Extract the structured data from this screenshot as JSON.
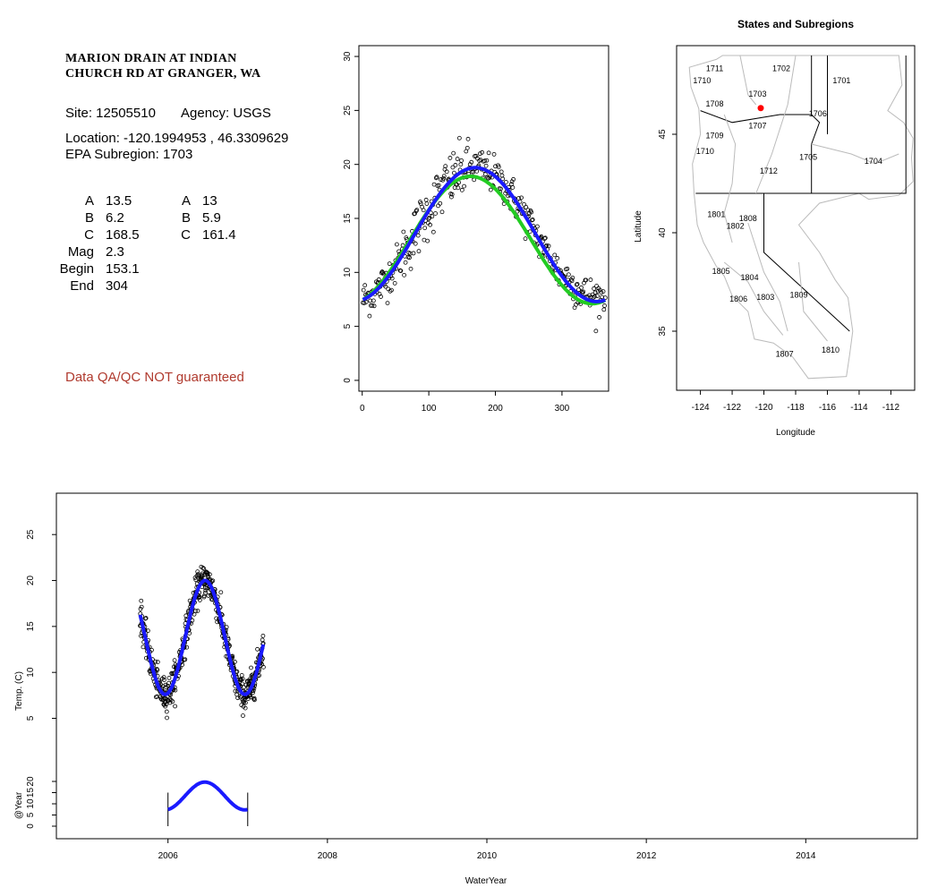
{
  "info": {
    "title_line1": "MARION DRAIN AT INDIAN",
    "title_line2": "CHURCH RD AT GRANGER, WA",
    "site": "Site: 12505510",
    "agency": "Agency: USGS",
    "location": "Location: -120.1994953 , 46.3309629",
    "subregion": "EPA Subregion: 1703",
    "params": [
      {
        "label": "A",
        "value": "13.5"
      },
      {
        "label": "B",
        "value": "6.2"
      },
      {
        "label": "C",
        "value": "168.5"
      },
      {
        "label": "Mag",
        "value": "2.3"
      },
      {
        "label": "Begin",
        "value": "153.1"
      },
      {
        "label": "End",
        "value": "304"
      }
    ],
    "params2": [
      {
        "label": "A",
        "value": "13"
      },
      {
        "label": "B",
        "value": "5.9"
      },
      {
        "label": "C",
        "value": "161.4"
      }
    ],
    "qa_note": "Data QA/QC NOT guaranteed"
  },
  "colors": {
    "points": "#000000",
    "fit_blue": "#1a1aff",
    "fit_green": "#22cc22",
    "site_marker": "#ff0000",
    "qa_text": "#b03a2e",
    "region_lines": "#bbbbbb"
  },
  "chart_data": [
    {
      "type": "scatter",
      "title": "",
      "xlabel": "",
      "ylabel": "",
      "xlim": [
        -5,
        370
      ],
      "ylim": [
        -1,
        31
      ],
      "xticks": [
        0,
        100,
        200,
        300
      ],
      "yticks": [
        0,
        5,
        10,
        15,
        20,
        25,
        30
      ],
      "observations_description": "daily water temperature (C) vs day of water year",
      "fit_blue": {
        "A": 13.5,
        "B": 6.2,
        "C": 168.5,
        "Mag": 2.3,
        "Begin": 153.1,
        "End": 304
      },
      "fit_green": {
        "A": 13,
        "B": 5.9,
        "C": 161.4
      },
      "point_count_approx": 365
    },
    {
      "type": "map",
      "title": "States and Subregions",
      "xlabel": "Longitude",
      "ylabel": "Latitude",
      "xlim": [
        -125.5,
        -110.5
      ],
      "ylim": [
        32,
        49.5
      ],
      "xticks": [
        -124,
        -122,
        -120,
        -118,
        -116,
        -114,
        -112
      ],
      "yticks": [
        35,
        40,
        45
      ],
      "site": {
        "lon": -120.1994953,
        "lat": 46.3309629
      },
      "region_labels": [
        {
          "name": "1711",
          "lon": -123.1,
          "lat": 48.2
        },
        {
          "name": "1710",
          "lon": -123.9,
          "lat": 47.6
        },
        {
          "name": "1702",
          "lon": -118.9,
          "lat": 48.2
        },
        {
          "name": "1701",
          "lon": -115.1,
          "lat": 47.6
        },
        {
          "name": "1703",
          "lon": -120.4,
          "lat": 46.9
        },
        {
          "name": "1708",
          "lon": -123.1,
          "lat": 46.4
        },
        {
          "name": "1706",
          "lon": -116.6,
          "lat": 45.9
        },
        {
          "name": "1707",
          "lon": -120.4,
          "lat": 45.3
        },
        {
          "name": "1709",
          "lon": -123.1,
          "lat": 44.8
        },
        {
          "name": "1710",
          "lon": -123.7,
          "lat": 44.0
        },
        {
          "name": "1705",
          "lon": -117.2,
          "lat": 43.7
        },
        {
          "name": "1704",
          "lon": -113.1,
          "lat": 43.5
        },
        {
          "name": "1712",
          "lon": -119.7,
          "lat": 43.0
        },
        {
          "name": "1801",
          "lon": -123.0,
          "lat": 40.8
        },
        {
          "name": "1808",
          "lon": -121.0,
          "lat": 40.6
        },
        {
          "name": "1802",
          "lon": -121.8,
          "lat": 40.2
        },
        {
          "name": "1805",
          "lon": -122.7,
          "lat": 37.9
        },
        {
          "name": "1804",
          "lon": -120.9,
          "lat": 37.6
        },
        {
          "name": "1806",
          "lon": -121.6,
          "lat": 36.5
        },
        {
          "name": "1803",
          "lon": -119.9,
          "lat": 36.6
        },
        {
          "name": "1809",
          "lon": -117.8,
          "lat": 36.7
        },
        {
          "name": "1807",
          "lon": -118.7,
          "lat": 33.7
        },
        {
          "name": "1810",
          "lon": -115.8,
          "lat": 33.9
        }
      ]
    },
    {
      "type": "scatter",
      "title": "",
      "xlabel": "WaterYear",
      "ylabel": "Temp. (C)",
      "xlim": [
        2004.6,
        2015.4
      ],
      "ylim": [
        -8.1,
        29.5
      ],
      "xticks": [
        2006,
        2008,
        2010,
        2012,
        2014
      ],
      "yticks": [
        5,
        10,
        15,
        20,
        25
      ],
      "data_range": [
        2005.65,
        2007.2
      ],
      "observations_description": "daily water temperature (C) time series",
      "annual_fit_panel": {
        "ylabel": "@Year",
        "yticks": [
          0,
          5,
          10,
          15,
          20
        ],
        "year_markers": [
          2006,
          2007
        ],
        "curve_start": 2006.0,
        "curve_end": 2007.0
      }
    }
  ]
}
